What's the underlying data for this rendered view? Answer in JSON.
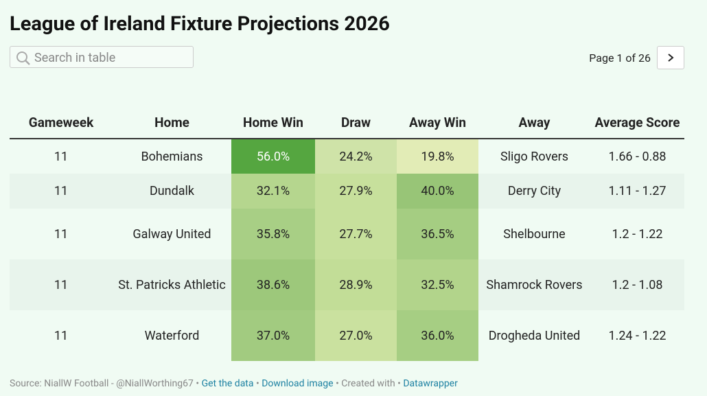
{
  "title": "League of Ireland Fixture Projections 2026",
  "search_placeholder": "Search in table",
  "pagination": "Page 1 of 26",
  "table": {
    "header": [
      "Gameweek",
      "Home",
      "Home Win",
      "Draw",
      "Away Win",
      "Away",
      "Average Score"
    ],
    "rows": [
      [
        "11",
        "Bohemians",
        "56.0%",
        "24.2%",
        "19.8%",
        "Sligo Rovers",
        "1.66 - 0.88"
      ],
      [
        "11",
        "Dundalk",
        "32.1%",
        "27.9%",
        "40.0%",
        "Derry City",
        "1.11 - 1.27"
      ],
      [
        "11",
        "Galway United",
        "35.8%",
        "27.7%",
        "36.5%",
        "Shelbourne",
        "1.2 - 1.22"
      ],
      [
        "11",
        "St. Patricks Athletic",
        "38.6%",
        "28.9%",
        "32.5%",
        "Shamrock Rovers",
        "1.2 - 1.08"
      ],
      [
        "11",
        "Waterford",
        "37.0%",
        "27.0%",
        "36.0%",
        "Drogheda United",
        "1.24 - 1.22"
      ]
    ],
    "heat_colors": [
      [
        "#55a640",
        "#cfe3a8",
        "#e2ecb6"
      ],
      [
        "#b5d68e",
        "#c7e09c",
        "#98c577"
      ],
      [
        "#a8cf85",
        "#c7e09c",
        "#a5cd82"
      ],
      [
        "#9dc87b",
        "#c2dd97",
        "#b2d48b"
      ],
      [
        "#a2cb80",
        "#cae19f",
        "#a6ce83"
      ]
    ]
  },
  "footer": {
    "separator": "•",
    "items": [
      {
        "text": "Source: NiallW Football - @NiallWorthing67",
        "link": false
      },
      {
        "text": "Get the data",
        "link": true
      },
      {
        "text": "Download image",
        "link": true
      },
      {
        "text": "Created with",
        "link": false
      },
      {
        "text": "Datawrapper",
        "link": true
      }
    ]
  }
}
